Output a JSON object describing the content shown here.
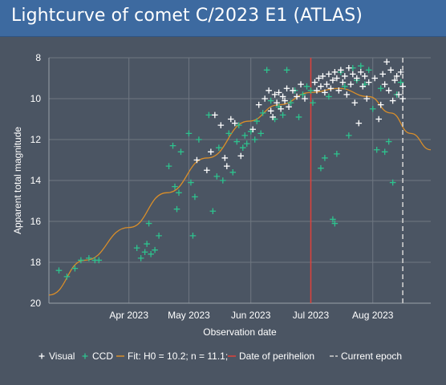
{
  "title": "Lightcurve of comet C/2023 E1 (ATLAS)",
  "chart_data": {
    "type": "scatter",
    "xlabel": "Observation date",
    "ylabel": "Apparent total magnitude",
    "x_ticks": [
      "Apr 2023",
      "May 2023",
      "Jun 2023",
      "Jul 2023",
      "Aug 2023"
    ],
    "x_range": [
      "2023-02-20",
      "2023-08-30"
    ],
    "y_ticks": [
      8,
      10,
      12,
      14,
      16,
      18,
      20
    ],
    "ylim": [
      20,
      8
    ],
    "y_inverted": true,
    "grid": true,
    "legend_position": "bottom",
    "colors": {
      "visual": "#ffffff",
      "ccd": "#2ec28e",
      "fit": "#d98e2a",
      "perihelion": "#e0413a",
      "current_epoch": "#d0d0d0"
    },
    "legend": [
      {
        "key": "visual",
        "label": "Visual"
      },
      {
        "key": "ccd",
        "label": "CCD"
      },
      {
        "key": "fit",
        "label": "Fit: H0 = 10.2; n = 11.1;"
      },
      {
        "key": "perihelion",
        "label": "Date of perihelion"
      },
      {
        "key": "current_epoch",
        "label": "Current epoch"
      }
    ],
    "perihelion_date": "2023-07-01",
    "current_epoch_date": "2023-08-16",
    "fit_curve": [
      [
        "2023-02-20",
        19.6
      ],
      [
        "2023-03-10",
        17.9
      ],
      [
        "2023-04-01",
        16.3
      ],
      [
        "2023-04-20",
        14.6
      ],
      [
        "2023-05-10",
        12.9
      ],
      [
        "2023-05-31",
        11.1
      ],
      [
        "2023-06-15",
        10.3
      ],
      [
        "2023-07-01",
        9.7
      ],
      [
        "2023-07-15",
        9.5
      ],
      [
        "2023-07-30",
        9.9
      ],
      [
        "2023-08-10",
        10.7
      ],
      [
        "2023-08-20",
        11.7
      ],
      [
        "2023-08-30",
        12.5
      ]
    ],
    "series": [
      {
        "name": "Visual",
        "points": [
          [
            "2023-05-05",
            13.0
          ],
          [
            "2023-05-10",
            13.5
          ],
          [
            "2023-05-12",
            12.6
          ],
          [
            "2023-05-14",
            10.8
          ],
          [
            "2023-05-17",
            11.3
          ],
          [
            "2023-05-19",
            12.9
          ],
          [
            "2023-05-20",
            13.3
          ],
          [
            "2023-05-22",
            11.0
          ],
          [
            "2023-05-24",
            11.2
          ],
          [
            "2023-05-27",
            12.8
          ],
          [
            "2023-06-02",
            11.5
          ],
          [
            "2023-06-05",
            10.3
          ],
          [
            "2023-06-08",
            10.0
          ],
          [
            "2023-06-10",
            9.6
          ],
          [
            "2023-06-11",
            10.6
          ],
          [
            "2023-06-12",
            10.9
          ],
          [
            "2023-06-13",
            9.8
          ],
          [
            "2023-06-14",
            10.2
          ],
          [
            "2023-06-15",
            9.7
          ],
          [
            "2023-06-16",
            10.5
          ],
          [
            "2023-06-17",
            9.9
          ],
          [
            "2023-06-18",
            10.1
          ],
          [
            "2023-06-19",
            9.5
          ],
          [
            "2023-06-20",
            10.4
          ],
          [
            "2023-06-22",
            9.6
          ],
          [
            "2023-06-24",
            9.9
          ],
          [
            "2023-06-26",
            9.3
          ],
          [
            "2023-06-28",
            10.0
          ],
          [
            "2023-07-03",
            9.2
          ],
          [
            "2023-07-04",
            9.6
          ],
          [
            "2023-07-05",
            9.0
          ],
          [
            "2023-07-06",
            9.4
          ],
          [
            "2023-07-07",
            8.9
          ],
          [
            "2023-07-08",
            9.7
          ],
          [
            "2023-07-09",
            9.3
          ],
          [
            "2023-07-10",
            8.8
          ],
          [
            "2023-07-11",
            9.5
          ],
          [
            "2023-07-12",
            9.1
          ],
          [
            "2023-07-13",
            8.7
          ],
          [
            "2023-07-14",
            9.0
          ],
          [
            "2023-07-15",
            9.6
          ],
          [
            "2023-07-16",
            8.6
          ],
          [
            "2023-07-17",
            9.2
          ],
          [
            "2023-07-18",
            8.9
          ],
          [
            "2023-07-19",
            9.8
          ],
          [
            "2023-07-20",
            8.5
          ],
          [
            "2023-07-21",
            9.3
          ],
          [
            "2023-07-22",
            8.8
          ],
          [
            "2023-07-23",
            10.2
          ],
          [
            "2023-07-24",
            9.0
          ],
          [
            "2023-07-25",
            11.2
          ],
          [
            "2023-07-26",
            8.7
          ],
          [
            "2023-07-27",
            9.4
          ],
          [
            "2023-07-28",
            8.9
          ],
          [
            "2023-07-29",
            10.0
          ],
          [
            "2023-07-30",
            9.2
          ],
          [
            "2023-08-02",
            9.0
          ],
          [
            "2023-08-04",
            11.0
          ],
          [
            "2023-08-05",
            10.3
          ],
          [
            "2023-08-06",
            8.8
          ],
          [
            "2023-08-07",
            9.3
          ],
          [
            "2023-08-08",
            8.2
          ],
          [
            "2023-08-09",
            9.6
          ],
          [
            "2023-08-10",
            8.6
          ],
          [
            "2023-08-11",
            10.1
          ],
          [
            "2023-08-12",
            9.1
          ],
          [
            "2023-08-13",
            8.9
          ],
          [
            "2023-08-14",
            9.8
          ],
          [
            "2023-08-15",
            8.7
          ],
          [
            "2023-08-16",
            9.4
          ],
          [
            "2023-08-16",
            10.0
          ]
        ]
      },
      {
        "name": "CCD",
        "points": [
          [
            "2023-02-25",
            18.4
          ],
          [
            "2023-03-01",
            18.7
          ],
          [
            "2023-03-05",
            18.3
          ],
          [
            "2023-03-08",
            17.9
          ],
          [
            "2023-03-12",
            17.8
          ],
          [
            "2023-03-15",
            17.9
          ],
          [
            "2023-03-17",
            17.9
          ],
          [
            "2023-04-05",
            17.3
          ],
          [
            "2023-04-07",
            17.8
          ],
          [
            "2023-04-09",
            17.5
          ],
          [
            "2023-04-10",
            17.1
          ],
          [
            "2023-04-11",
            16.1
          ],
          [
            "2023-04-12",
            17.6
          ],
          [
            "2023-04-14",
            17.4
          ],
          [
            "2023-04-16",
            16.7
          ],
          [
            "2023-04-21",
            13.3
          ],
          [
            "2023-04-23",
            12.3
          ],
          [
            "2023-04-24",
            14.3
          ],
          [
            "2023-04-25",
            15.4
          ],
          [
            "2023-04-26",
            14.6
          ],
          [
            "2023-04-27",
            12.6
          ],
          [
            "2023-05-01",
            11.7
          ],
          [
            "2023-05-02",
            14.1
          ],
          [
            "2023-05-03",
            16.7
          ],
          [
            "2023-05-04",
            14.8
          ],
          [
            "2023-05-06",
            12.0
          ],
          [
            "2023-05-11",
            10.8
          ],
          [
            "2023-05-13",
            15.5
          ],
          [
            "2023-05-15",
            13.8
          ],
          [
            "2023-05-16",
            12.4
          ],
          [
            "2023-05-18",
            14.0
          ],
          [
            "2023-05-21",
            11.7
          ],
          [
            "2023-05-23",
            13.6
          ],
          [
            "2023-05-25",
            12.1
          ],
          [
            "2023-05-26",
            11.3
          ],
          [
            "2023-05-28",
            12.4
          ],
          [
            "2023-05-29",
            11.8
          ],
          [
            "2023-05-30",
            12.2
          ],
          [
            "2023-06-01",
            11.6
          ],
          [
            "2023-06-03",
            12.0
          ],
          [
            "2023-06-04",
            11.1
          ],
          [
            "2023-06-06",
            11.7
          ],
          [
            "2023-06-07",
            10.7
          ],
          [
            "2023-06-09",
            8.6
          ],
          [
            "2023-06-11",
            10.1
          ],
          [
            "2023-06-13",
            11.0
          ],
          [
            "2023-06-15",
            10.4
          ],
          [
            "2023-06-17",
            10.8
          ],
          [
            "2023-06-19",
            8.6
          ],
          [
            "2023-06-21",
            10.2
          ],
          [
            "2023-06-23",
            9.6
          ],
          [
            "2023-06-25",
            10.9
          ],
          [
            "2023-06-27",
            9.8
          ],
          [
            "2023-06-29",
            9.4
          ],
          [
            "2023-07-01",
            9.6
          ],
          [
            "2023-07-02",
            10.2
          ],
          [
            "2023-07-06",
            13.4
          ],
          [
            "2023-07-08",
            12.9
          ],
          [
            "2023-07-10",
            9.9
          ],
          [
            "2023-07-12",
            15.9
          ],
          [
            "2023-07-13",
            16.1
          ],
          [
            "2023-07-14",
            12.7
          ],
          [
            "2023-07-16",
            8.7
          ],
          [
            "2023-07-18",
            9.4
          ],
          [
            "2023-07-20",
            11.8
          ],
          [
            "2023-07-22",
            8.5
          ],
          [
            "2023-07-24",
            9.1
          ],
          [
            "2023-07-26",
            8.4
          ],
          [
            "2023-07-28",
            9.3
          ],
          [
            "2023-07-30",
            8.6
          ],
          [
            "2023-08-01",
            10.5
          ],
          [
            "2023-08-03",
            12.5
          ],
          [
            "2023-08-05",
            9.5
          ],
          [
            "2023-08-07",
            12.6
          ],
          [
            "2023-08-09",
            12.1
          ],
          [
            "2023-08-11",
            14.1
          ],
          [
            "2023-08-13",
            9.8
          ],
          [
            "2023-08-15",
            9.2
          ]
        ]
      }
    ]
  }
}
